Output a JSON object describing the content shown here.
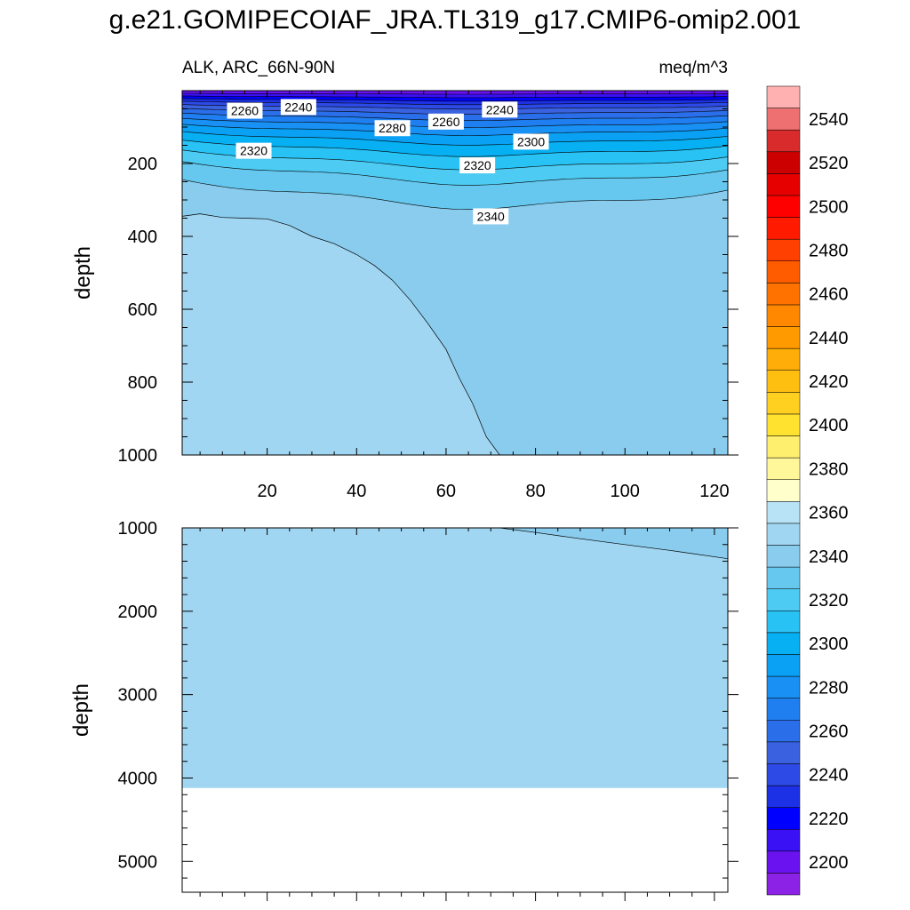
{
  "figure": {
    "title": "g.e21.GOMIPECOIAF_JRA.TL319_g17.CMIP6-omip2.001",
    "subtitle_left": "ALK, ARC_66N-90N",
    "subtitle_right": "meq/m^3"
  },
  "chart_data": [
    {
      "type": "contour",
      "panel": "upper",
      "variable": "ALK",
      "region": "ARC_66N-90N",
      "units": "meq/m^3",
      "xlabel": "",
      "ylabel": "depth",
      "xlim": [
        1,
        123
      ],
      "ylim": [
        1000,
        0
      ],
      "x_ticks": [
        20,
        40,
        60,
        80,
        100,
        120
      ],
      "x_tick_labels": [
        "20",
        "40",
        "60",
        "80",
        "100",
        "120"
      ],
      "y_ticks": [
        200,
        400,
        600,
        800,
        1000
      ],
      "y_tick_labels": [
        "200",
        "400",
        "600",
        "800",
        "1000"
      ],
      "contour_labels": [
        {
          "text": "2260",
          "x": 15,
          "y": 55
        },
        {
          "text": "2240",
          "x": 27,
          "y": 45
        },
        {
          "text": "2240",
          "x": 72,
          "y": 52
        },
        {
          "text": "2280",
          "x": 48,
          "y": 103
        },
        {
          "text": "2260",
          "x": 60,
          "y": 85
        },
        {
          "text": "2300",
          "x": 79,
          "y": 140
        },
        {
          "text": "2320",
          "x": 17,
          "y": 165
        },
        {
          "text": "2320",
          "x": 67,
          "y": 205
        },
        {
          "text": "2340",
          "x": 70,
          "y": 345
        }
      ],
      "depth_bands": [
        {
          "value": 2200,
          "top": 0,
          "bottom": 8
        },
        {
          "value": 2210,
          "top": 8,
          "bottom": 16
        },
        {
          "value": 2220,
          "top": 16,
          "bottom": 24
        },
        {
          "value": 2230,
          "top": 24,
          "bottom": 32
        },
        {
          "value": 2240,
          "top": 32,
          "bottom": 42
        },
        {
          "value": 2250,
          "top": 42,
          "bottom": 54
        },
        {
          "value": 2260,
          "top": 54,
          "bottom": 68
        },
        {
          "value": 2270,
          "top": 68,
          "bottom": 84
        },
        {
          "value": 2280,
          "top": 84,
          "bottom": 102
        },
        {
          "value": 2290,
          "top": 102,
          "bottom": 124
        },
        {
          "value": 2300,
          "top": 124,
          "bottom": 150
        },
        {
          "value": 2310,
          "top": 150,
          "bottom": 180
        },
        {
          "value": 2320,
          "top": 180,
          "bottom": 215
        },
        {
          "value": 2330,
          "top": 215,
          "bottom": 270
        }
      ],
      "fields": {
        "2340_region_color": "#89cced",
        "2350_region_color": "#a0d6f1",
        "2350_boundary_x": [
          1,
          5,
          10,
          15,
          20,
          25,
          30,
          35,
          40,
          44,
          48,
          52,
          56,
          60,
          63,
          66,
          69,
          72
        ],
        "2350_boundary_depth": [
          345,
          338,
          348,
          350,
          352,
          370,
          400,
          420,
          450,
          480,
          520,
          575,
          640,
          710,
          790,
          860,
          950,
          1000
        ]
      }
    },
    {
      "type": "contour",
      "panel": "lower",
      "xlabel": "",
      "ylabel": "depth",
      "xlim": [
        1,
        123
      ],
      "ylim": [
        5370,
        1000
      ],
      "y_ticks": [
        1000,
        2000,
        3000,
        4000,
        5000
      ],
      "y_tick_labels": [
        "1000",
        "2000",
        "3000",
        "4000",
        "5000"
      ],
      "bottom_depth": 4120,
      "fields": {
        "2350_boundary_x": [
          72,
          80,
          90,
          100,
          110,
          123
        ],
        "2350_boundary_depth": [
          1000,
          1055,
          1130,
          1200,
          1270,
          1370
        ]
      }
    },
    {
      "type": "colorbar",
      "levels": [
        2190,
        2200,
        2210,
        2220,
        2230,
        2240,
        2250,
        2260,
        2270,
        2280,
        2290,
        2300,
        2310,
        2320,
        2330,
        2340,
        2350,
        2360,
        2370,
        2380,
        2390,
        2400,
        2410,
        2420,
        2430,
        2440,
        2450,
        2460,
        2470,
        2480,
        2490,
        2500,
        2510,
        2520,
        2530,
        2540,
        2550
      ],
      "tick_labels": [
        "2200",
        "2220",
        "2240",
        "2260",
        "2280",
        "2300",
        "2320",
        "2340",
        "2360",
        "2380",
        "2400",
        "2420",
        "2440",
        "2460",
        "2480",
        "2500",
        "2520",
        "2540"
      ],
      "colors": [
        "#8b22e5",
        "#6b12f0",
        "#3a10f5",
        "#0000ff",
        "#1c31e6",
        "#2e4ae6",
        "#3a62e0",
        "#2a6ee9",
        "#1f7ff0",
        "#1890f4",
        "#0aa0f4",
        "#07b0f2",
        "#28c2f4",
        "#4ecbf2",
        "#66c8ef",
        "#89cced",
        "#a0d6f1",
        "#b8e2f5",
        "#ffffcc",
        "#fff79a",
        "#ffef6e",
        "#ffe230",
        "#ffd020",
        "#ffbf10",
        "#ffad08",
        "#ff9a00",
        "#ff8800",
        "#ff7200",
        "#ff5c00",
        "#ff4000",
        "#ff1a00",
        "#ff0000",
        "#e60000",
        "#cc0000",
        "#d92b2b",
        "#ee7070",
        "#ffb0b0"
      ]
    }
  ]
}
